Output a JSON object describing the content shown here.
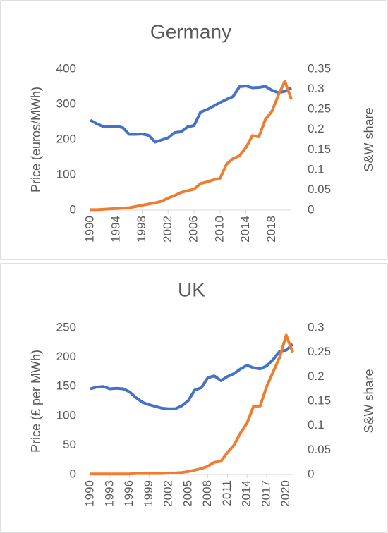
{
  "chart_data": [
    {
      "type": "line",
      "title": "Germany",
      "y_label": "Price (euros/MWh)",
      "y2_label": "S&W share",
      "x": [
        1990,
        1991,
        1992,
        1993,
        1994,
        1995,
        1996,
        1997,
        1998,
        1999,
        2000,
        2001,
        2002,
        2003,
        2004,
        2005,
        2006,
        2007,
        2008,
        2009,
        2010,
        2011,
        2012,
        2013,
        2014,
        2015,
        2016,
        2017,
        2018,
        2019,
        2020,
        2021
      ],
      "xlim": [
        1990,
        2021
      ],
      "xticks": [
        1990,
        1994,
        1998,
        2002,
        2006,
        2010,
        2014,
        2018
      ],
      "ylim": [
        0,
        400
      ],
      "yticks": [
        0,
        100,
        200,
        300,
        400
      ],
      "y2lim": [
        0,
        0.35
      ],
      "y2ticks": [
        0,
        0.05,
        0.1,
        0.15,
        0.2,
        0.25,
        0.3,
        0.35
      ],
      "series": [
        {
          "color": "#4472c4",
          "axis": "y",
          "values": [
            255,
            245,
            237,
            236,
            238,
            234,
            215,
            215,
            216,
            212,
            193,
            199,
            205,
            220,
            222,
            236,
            240,
            278,
            285,
            295,
            305,
            314,
            322,
            350,
            352,
            347,
            348,
            351,
            340,
            333,
            337,
            347
          ]
        },
        {
          "color": "#ed7d31",
          "axis": "y2",
          "values": [
            0.001,
            0.001,
            0.002,
            0.003,
            0.004,
            0.005,
            0.006,
            0.009,
            0.012,
            0.015,
            0.018,
            0.022,
            0.03,
            0.036,
            0.044,
            0.048,
            0.052,
            0.066,
            0.07,
            0.075,
            0.079,
            0.114,
            0.128,
            0.135,
            0.155,
            0.185,
            0.182,
            0.225,
            0.245,
            0.285,
            0.32,
            0.275
          ]
        }
      ]
    },
    {
      "type": "line",
      "title": "UK",
      "y_label": "Price (£ per MWh)",
      "y2_label": "S&W share",
      "x": [
        1990,
        1991,
        1992,
        1993,
        1994,
        1995,
        1996,
        1997,
        1998,
        1999,
        2000,
        2001,
        2002,
        2003,
        2004,
        2005,
        2006,
        2007,
        2008,
        2009,
        2010,
        2011,
        2012,
        2013,
        2014,
        2015,
        2016,
        2017,
        2018,
        2019,
        2020,
        2021
      ],
      "xlim": [
        1990,
        2021
      ],
      "xticks": [
        1990,
        1993,
        1996,
        1999,
        2002,
        2005,
        2008,
        2011,
        2014,
        2017,
        2020
      ],
      "ylim": [
        0,
        250
      ],
      "yticks": [
        0,
        50,
        100,
        150,
        200,
        250
      ],
      "y2lim": [
        0,
        0.3
      ],
      "y2ticks": [
        0,
        0.05,
        0.1,
        0.15,
        0.2,
        0.25,
        0.3
      ],
      "series": [
        {
          "color": "#4472c4",
          "axis": "y",
          "values": [
            146,
            149,
            150,
            146,
            147,
            146,
            141,
            131,
            123,
            119,
            116,
            113,
            112,
            112,
            117,
            126,
            144,
            148,
            165,
            168,
            160,
            167,
            172,
            180,
            186,
            182,
            180,
            185,
            196,
            210,
            212,
            222
          ]
        },
        {
          "color": "#ed7d31",
          "axis": "y2",
          "values": [
            0.001,
            0.001,
            0.001,
            0.001,
            0.001,
            0.001,
            0.001,
            0.002,
            0.002,
            0.002,
            0.002,
            0.002,
            0.003,
            0.003,
            0.004,
            0.006,
            0.009,
            0.012,
            0.017,
            0.025,
            0.027,
            0.045,
            0.06,
            0.085,
            0.105,
            0.14,
            0.14,
            0.18,
            0.21,
            0.24,
            0.285,
            0.25
          ]
        }
      ]
    }
  ]
}
